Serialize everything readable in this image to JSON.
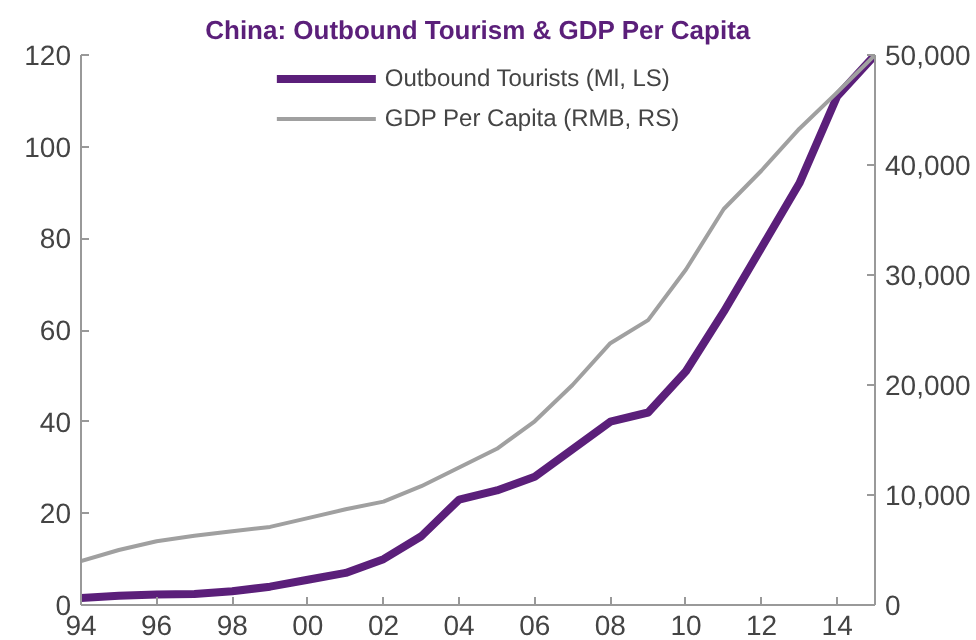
{
  "chart_data": {
    "type": "line",
    "title": "China: Outbound Tourism & GDP Per Capita",
    "x": [
      1994,
      1995,
      1996,
      1997,
      1998,
      1999,
      2000,
      2001,
      2002,
      2003,
      2004,
      2005,
      2006,
      2007,
      2008,
      2009,
      2010,
      2011,
      2012,
      2013,
      2014,
      2015
    ],
    "series": [
      {
        "name": "Outbound Tourists (Ml, LS)",
        "color": "#5b1f7a",
        "values": [
          1.5,
          2,
          2.3,
          2.4,
          3,
          4,
          5.5,
          7,
          10,
          15,
          23,
          25,
          28,
          34,
          40,
          42,
          51,
          64,
          78,
          92,
          111,
          120
        ]
      },
      {
        "name": "GDP Per Capita (RMB, RS)",
        "color": "#a0a0a0",
        "axis": "y2",
        "values": [
          4000,
          5000,
          5800,
          6300,
          6700,
          7100,
          7900,
          8700,
          9400,
          10800,
          12500,
          14200,
          16700,
          20000,
          23800,
          25900,
          30500,
          36000,
          39500,
          43300,
          46600,
          50000
        ]
      }
    ],
    "xlim": [
      1994,
      2015
    ],
    "xticks": [
      {
        "value": 1994,
        "label": "94"
      },
      {
        "value": 1996,
        "label": "96"
      },
      {
        "value": 1998,
        "label": "98"
      },
      {
        "value": 2000,
        "label": "00"
      },
      {
        "value": 2002,
        "label": "02"
      },
      {
        "value": 2004,
        "label": "04"
      },
      {
        "value": 2006,
        "label": "06"
      },
      {
        "value": 2008,
        "label": "08"
      },
      {
        "value": 2010,
        "label": "10"
      },
      {
        "value": 2012,
        "label": "12"
      },
      {
        "value": 2014,
        "label": "14"
      }
    ],
    "ylim": [
      0,
      120
    ],
    "yticks": [
      0,
      20,
      40,
      60,
      80,
      100,
      120
    ],
    "y2lim": [
      0,
      50000
    ],
    "y2ticks": [
      {
        "value": 0,
        "label": "0"
      },
      {
        "value": 10000,
        "label": "10,000"
      },
      {
        "value": 20000,
        "label": "20,000"
      },
      {
        "value": 30000,
        "label": "30,000"
      },
      {
        "value": 40000,
        "label": "40,000"
      },
      {
        "value": 50000,
        "label": "50,000"
      }
    ],
    "grid": false,
    "legend": "top"
  }
}
